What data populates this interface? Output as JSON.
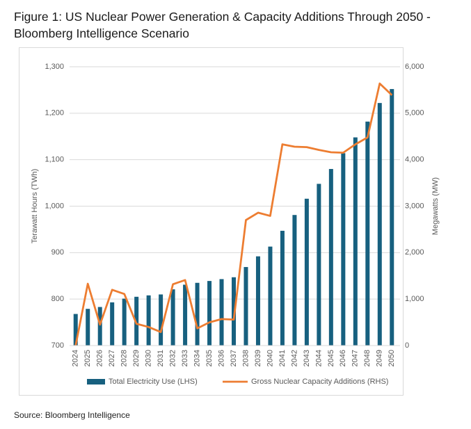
{
  "chart_data": {
    "type": "bar-line",
    "title": "Figure 1: US Nuclear Power Generation & Capacity Additions Through 2050  - Bloomberg Intelligence Scenario",
    "source": "Source: Bloomberg Intelligence",
    "y_label": "Terawatt Hours (TWh)",
    "y2_label": "Megawatts (MW)",
    "categories": [
      "2024",
      "2025",
      "2026",
      "2027",
      "2028",
      "2029",
      "2030",
      "2031",
      "2032",
      "2033",
      "2034",
      "2035",
      "2036",
      "2037",
      "2038",
      "2039",
      "2040",
      "2041",
      "2042",
      "2043",
      "2044",
      "2045",
      "2046",
      "2047",
      "2048",
      "2049",
      "2050"
    ],
    "series": [
      {
        "name": "Total Electricity Use (LHS)",
        "type": "bar",
        "color": "#17607f",
        "values": [
          768,
          779,
          783,
          793,
          801,
          805,
          808,
          810,
          821,
          831,
          835,
          839,
          843,
          847,
          869,
          892,
          913,
          947,
          981,
          1016,
          1048,
          1080,
          1114,
          1148,
          1182,
          1222,
          1252
        ]
      },
      {
        "name": "Gross Nuclear Capacity Additions (RHS)",
        "type": "line",
        "axis": "y2",
        "color": "#ed7d31",
        "values": [
          0,
          1330,
          450,
          1200,
          1110,
          470,
          400,
          290,
          1320,
          1410,
          370,
          500,
          570,
          560,
          2700,
          2860,
          2790,
          4330,
          4280,
          4270,
          4210,
          4160,
          4150,
          4330,
          4480,
          5640,
          5390
        ]
      }
    ],
    "ylim": [
      700,
      1300
    ],
    "yticks": [
      700,
      800,
      900,
      {
        "value": 1000,
        "label": "1,000"
      },
      {
        "value": 1100,
        "label": "1,100"
      },
      {
        "value": 1200,
        "label": "1,200"
      },
      {
        "value": 1300,
        "label": "1,300"
      }
    ],
    "y2lim": [
      0,
      6000
    ],
    "y2ticks": [
      0,
      {
        "value": 1000,
        "label": "1,000"
      },
      {
        "value": 2000,
        "label": "2,000"
      },
      {
        "value": 3000,
        "label": "3,000"
      },
      {
        "value": 4000,
        "label": "4,000"
      },
      {
        "value": 5000,
        "label": "5,000"
      },
      {
        "value": 6000,
        "label": "6,000"
      }
    ],
    "grid": true,
    "legend": "bottom"
  }
}
